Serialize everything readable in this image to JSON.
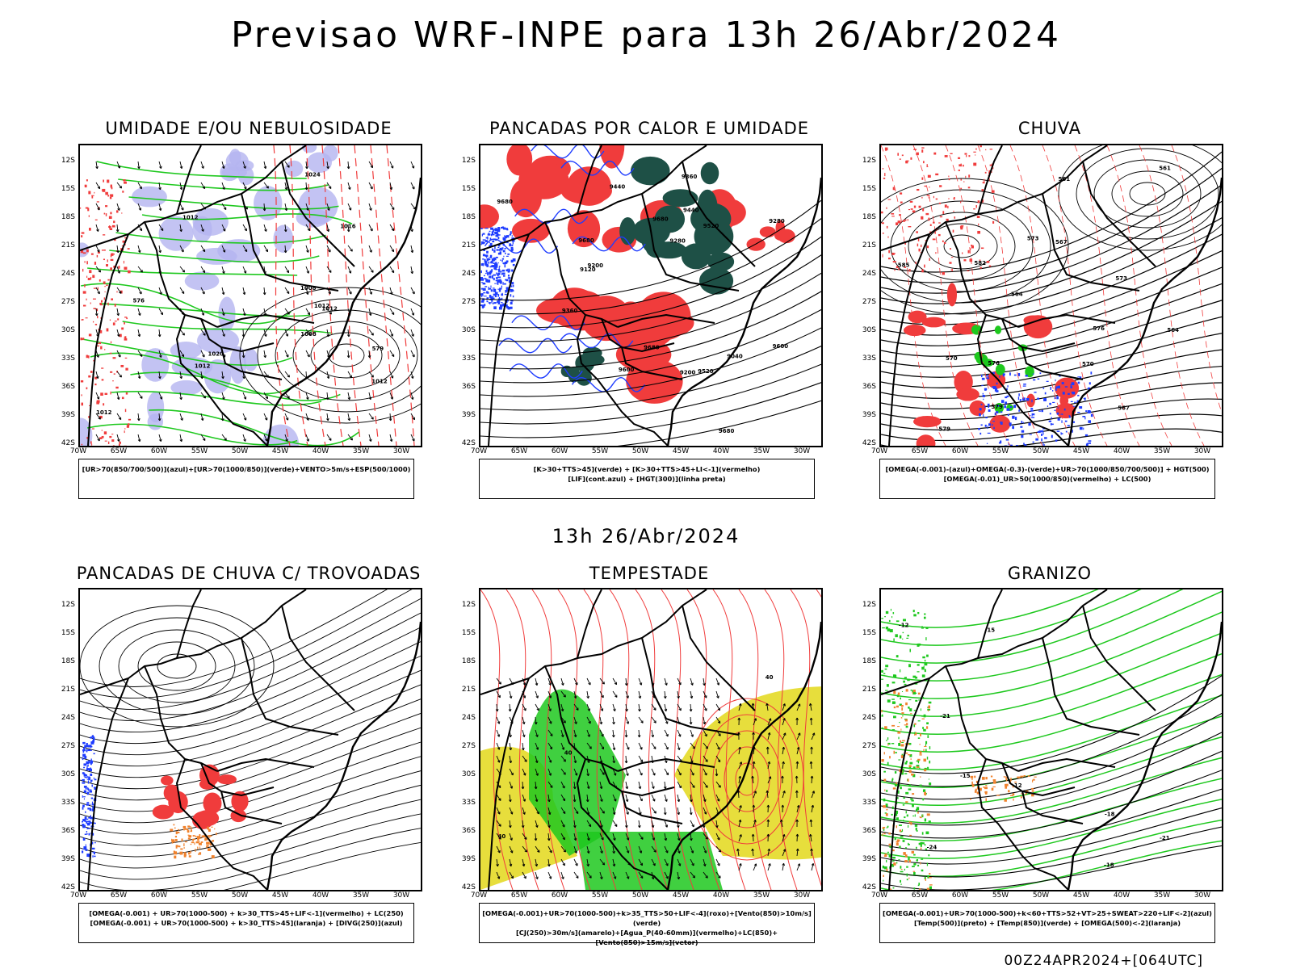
{
  "title": "Previsao WRF-INPE  para 13h 26/Abr/2024",
  "mid_title": "13h 26/Abr/2024",
  "footer": "00Z24APR2024+[064UTC]",
  "lat_labels": [
    "12S",
    "15S",
    "18S",
    "21S",
    "24S",
    "27S",
    "30S",
    "33S",
    "36S",
    "39S",
    "42S"
  ],
  "lon_labels": [
    "70W",
    "65W",
    "60W",
    "55W",
    "50W",
    "45W",
    "40W",
    "35W",
    "30W"
  ],
  "colors": {
    "blue_fill": "#b4b4f0",
    "green_line": "#1ec81e",
    "red": "#f03c3c",
    "dark_teal": "#1e5046",
    "yellow": "#e6dc32",
    "green_fill": "#1ec81e",
    "orange": "#f0822d",
    "blue": "#1e3cff"
  },
  "panels": [
    {
      "title": "UMIDADE E/OU NEBULOSIDADE",
      "legend": [
        "[UR>70(850/700/500)](azul)+[UR>70(1000/850)](verde)+VENTO>5m/s+ESP(500/1000)"
      ],
      "labels": [
        "1012",
        "1012",
        "1012",
        "1012",
        "1012",
        "1008",
        "1016",
        "1020",
        "1024",
        "1008",
        "1012",
        "576",
        "579"
      ]
    },
    {
      "title": "PANCADAS POR CALOR E UMIDADE",
      "legend": [
        "[K>30+TTS>45](verde) + [K>30+TTS>45+LI<-1](vermelho)",
        "[LIF](cont.azul) + [HGT(300)](linha preta)"
      ],
      "labels": [
        "9680",
        "9680",
        "9680",
        "9680",
        "9680",
        "9600",
        "9520",
        "9440",
        "9360",
        "9280",
        "9200",
        "9120",
        "9040",
        "9520",
        "9600",
        "9440",
        "9360",
        "9280",
        "9200"
      ]
    },
    {
      "title": "CHUVA",
      "legend": [
        "[OMEGA(-0.001)-(azul)+OMEGA(-0.3)-(verde)+UR>70(1000/850/700/500)] + HGT(500)",
        "[OMEGA(-0.01)_UR>50(1000/850)(vermelho) + LC(500)"
      ],
      "labels": [
        "585",
        "582",
        "579",
        "576",
        "573",
        "570",
        "567",
        "564",
        "561",
        "579",
        "576",
        "573",
        "570",
        "567",
        "564",
        "561"
      ]
    },
    {
      "title": "PANCADAS DE CHUVA C/ TROVOADAS",
      "legend": [
        "[OMEGA(-0.001) + UR>70(1000-500) + k>30_TTS>45+LIF<-1](vermelho) + LC(250)",
        "[OMEGA(-0.001) + UR>70(1000-500) + k>30_TTS>45](laranja) + [DIVG(250)](azul)"
      ],
      "labels": []
    },
    {
      "title": "TEMPESTADE",
      "legend": [
        "[OMEGA(-0.001)+UR>70(1000-500)+k>35_TTS>50+LIF<-4](roxo)+[Vento(850)>10m/s](verde)",
        "[CJ(250)>30m/s](amarelo)+[Agua_P(40-60mm)](vermelho)+LC(850)+[Vento(850)>15m/s](vetor)"
      ],
      "labels": [
        "40",
        "40",
        "40"
      ]
    },
    {
      "title": "GRANIZO",
      "legend": [
        "[OMEGA(-0.001)+UR>70(1000-500)+k<60+TTS>52+VT>25+SWEAT>220+LIF<-2](azul)",
        "[Temp(500)](preto) + [Temp(850)](verde) + [OMEGA(500)<-2](laranja)"
      ],
      "labels": [
        "-12",
        "-15",
        "-18",
        "-21",
        "-18",
        "-21",
        "-24",
        "12",
        "15"
      ]
    }
  ]
}
